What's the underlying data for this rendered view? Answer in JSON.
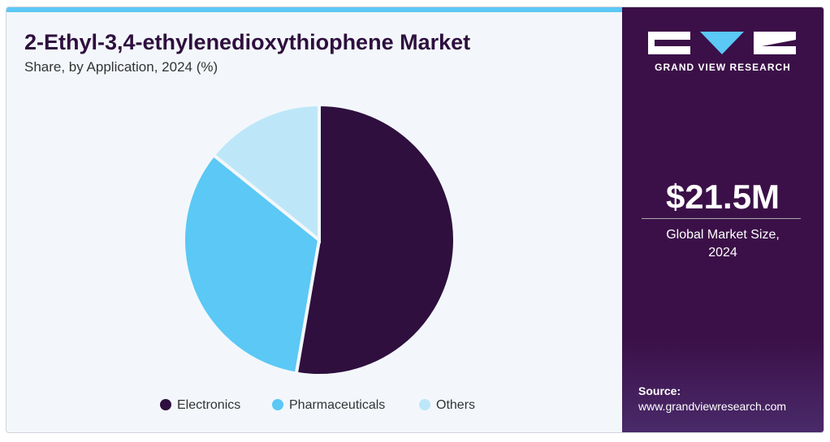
{
  "chart_data": {
    "type": "pie",
    "title": "2-Ethyl-3,4-ethylenedioxythiophene Market",
    "subtitle": "Share, by Application, 2024 (%)",
    "categories": [
      "Electronics",
      "Pharmaceuticals",
      "Others"
    ],
    "values": [
      52.7,
      33.1,
      14.2
    ],
    "colors": [
      "#2e0f3e",
      "#5bc8f5",
      "#bde7f8"
    ]
  },
  "sidebar": {
    "brand": "GRAND VIEW RESEARCH",
    "market_size": "$21.5M",
    "market_size_label": "Global Market Size, 2024",
    "source_label": "Source:",
    "source_url": "www.grandviewresearch.com"
  }
}
